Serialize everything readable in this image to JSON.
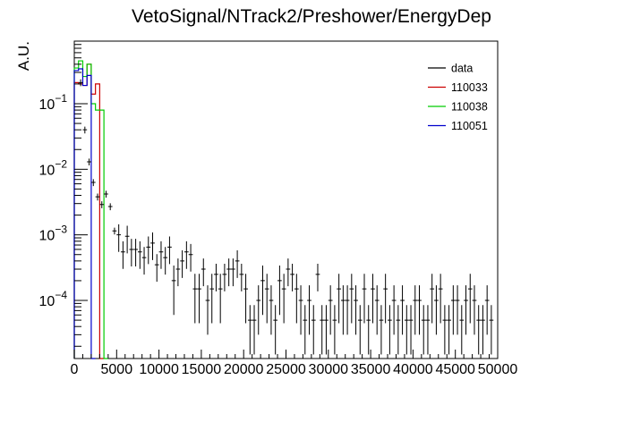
{
  "chart_data": {
    "type": "line",
    "title": "VetoSignal/NTrack2/Preshower/EnergyDep",
    "xlabel": "",
    "ylabel": "A.U.",
    "xlim": [
      0,
      50000
    ],
    "ylim": [
      1.3e-05,
      0.9
    ],
    "yscale": "log",
    "grid": false,
    "legend_placement": "top-right",
    "x_ticks": [
      0,
      5000,
      10000,
      15000,
      20000,
      25000,
      30000,
      35000,
      40000,
      45000,
      50000
    ],
    "x_tick_labels": [
      "0",
      "5000",
      "10000",
      "15000",
      "20000",
      "25000",
      "30000",
      "35000",
      "40000",
      "45000",
      "50000"
    ],
    "y_ticks": [
      0.0001,
      0.001,
      0.01,
      0.1
    ],
    "y_tick_labels": [
      "10^-4",
      "10^-3",
      "10^-2",
      "10^-1"
    ],
    "bin_width": 500,
    "series": [
      {
        "name": "data",
        "color": "#000000",
        "style": "errorbar",
        "x": [
          750,
          1250,
          1750,
          2250,
          2750,
          3250,
          3750,
          4250,
          4750,
          5250,
          5750,
          6250,
          6750,
          7250,
          7750,
          8250,
          8750,
          9250,
          9750,
          10250,
          10750,
          11250,
          11750,
          12250,
          12750,
          13250,
          13750,
          14250,
          14750,
          15250,
          15750,
          16250,
          16750,
          17250,
          17750,
          18250,
          18750,
          19250,
          19750,
          20250,
          20750,
          21250,
          21750,
          22250,
          22750,
          23250,
          23750,
          24250,
          24750,
          25250,
          25750,
          26250,
          26750,
          27250,
          27750,
          28250,
          28750,
          29250,
          29750,
          30250,
          30750,
          31250,
          31750,
          32250,
          32750,
          33250,
          33750,
          34250,
          34750,
          35250,
          35750,
          36250,
          36750,
          37250,
          37750,
          38250,
          38750,
          39250,
          39750,
          40250,
          40750,
          41250,
          41750,
          42250,
          42750,
          43250,
          43750,
          44250,
          44750,
          45250,
          45750,
          46250,
          46750,
          47250,
          47750,
          48250,
          48750,
          49250
        ],
        "y": [
          0.21,
          0.04,
          0.013,
          0.0063,
          0.0038,
          0.0029,
          0.0042,
          0.0027,
          0.00115,
          0.001,
          0.00055,
          0.00095,
          0.0006,
          0.0006,
          0.00055,
          0.00045,
          0.00065,
          0.00075,
          0.00035,
          0.00055,
          0.00045,
          0.00065,
          0.0002,
          0.0003,
          0.0004,
          0.00055,
          0.0005,
          0.00015,
          0.00015,
          0.0003,
          0.0001,
          0.00015,
          0.00025,
          0.00015,
          0.00025,
          0.0003,
          0.0003,
          0.0004,
          0.00025,
          0.00015,
          5e-05,
          5e-05,
          0.0001,
          0.0002,
          0.00015,
          0.0001,
          5e-05,
          0.0002,
          0.00015,
          0.0003,
          0.00025,
          0.00015,
          0.0001,
          5e-05,
          0.0001,
          5e-05,
          0.00025,
          5e-05,
          5e-05,
          0.0001,
          5e-05,
          0.00015,
          0.0001,
          0.0001,
          0.00015,
          0.0001,
          5e-05,
          0.00015,
          5e-05,
          0.00015,
          0.0001,
          5e-05,
          0.00015,
          5e-05,
          0.0001,
          5e-05,
          0.0001,
          5e-05,
          5e-05,
          0.0001,
          0.0001,
          5e-05,
          5e-05,
          0.00015,
          0.0001,
          0.00015,
          5e-05,
          5e-05,
          0.0001,
          0.0001,
          5e-05,
          0.0001,
          0.00015,
          0.0001,
          5e-05,
          5e-05,
          0.0001,
          5e-05
        ]
      },
      {
        "name": "110033",
        "color": "#cc0000",
        "style": "step",
        "x": [
          0,
          500,
          1000,
          1500,
          2000,
          2500,
          3000
        ],
        "y": [
          0.21,
          0.2,
          0.19,
          0.4,
          0.14,
          0.2,
          1e-05
        ]
      },
      {
        "name": "110038",
        "color": "#00cc00",
        "style": "step",
        "x": [
          0,
          500,
          1000,
          1500,
          2000,
          2500,
          3000,
          3500
        ],
        "y": [
          0.35,
          0.45,
          0.26,
          0.4,
          0.1,
          0.08,
          0.08,
          1e-05
        ]
      },
      {
        "name": "110051",
        "color": "#0000cc",
        "style": "step",
        "x": [
          0,
          500,
          1000,
          1500,
          2000
        ],
        "y": [
          0.32,
          0.34,
          0.19,
          0.27,
          1e-05
        ]
      }
    ]
  }
}
